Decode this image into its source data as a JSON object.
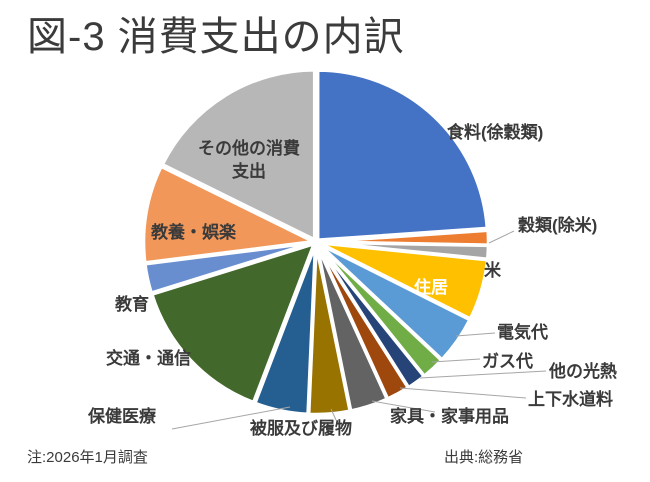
{
  "page": {
    "title": "図-3 消費支出の内訳",
    "note": "注:2026年1月調査",
    "source": "出典:総務省"
  },
  "chart_data": {
    "type": "pie",
    "title": "図-3 消費支出の内訳",
    "start_angle": "12-o-clock",
    "direction": "clockwise",
    "legend": "none (direct slice labels)",
    "slice_border_color": "#FFFFFF",
    "leader_line_color": "#A6A6A6",
    "background_color": "#FFFFFF",
    "slices": [
      {
        "label": "食料(徐穀類)",
        "share_percent": 23.9,
        "color": "#4472C4",
        "label_style": "outside"
      },
      {
        "label": "穀類(除米)",
        "share_percent": 1.4,
        "color": "#ED7D31",
        "label_style": "outside-leader"
      },
      {
        "label": "米",
        "share_percent": 1.3,
        "color": "#A5A5A5",
        "label_style": "outside"
      },
      {
        "label": "住居",
        "share_percent": 5.8,
        "color": "#FFC000",
        "label_style": "inside-white"
      },
      {
        "label": "電気代",
        "share_percent": 4.6,
        "color": "#5B9BD5",
        "label_style": "outside-leader"
      },
      {
        "label": "ガス代",
        "share_percent": 2.2,
        "color": "#70AD47",
        "label_style": "outside-leader"
      },
      {
        "label": "他の光熱",
        "share_percent": 1.8,
        "color": "#264478",
        "label_style": "outside-leader"
      },
      {
        "label": "上下水道料",
        "share_percent": 2.2,
        "color": "#9E480E",
        "label_style": "outside-leader"
      },
      {
        "label": "家具・家事用品",
        "share_percent": 3.6,
        "color": "#636363",
        "label_style": "outside-leader"
      },
      {
        "label": "被服及び履物",
        "share_percent": 3.9,
        "color": "#997300",
        "label_style": "outside-leader"
      },
      {
        "label": "保健医療",
        "share_percent": 5.1,
        "color": "#255E91",
        "label_style": "outside-leader"
      },
      {
        "label": "交通・通信",
        "share_percent": 14.4,
        "color": "#43682B",
        "label_style": "outside"
      },
      {
        "label": "教育",
        "share_percent": 2.8,
        "color": "#698ED0",
        "label_style": "outside"
      },
      {
        "label": "教養・娯楽",
        "share_percent": 9.3,
        "color": "#F1975A",
        "label_style": "inside-dark"
      },
      {
        "label": "その他の消費支出",
        "share_percent": 17.7,
        "color": "#B7B7B7",
        "label_style": "inside-dark"
      }
    ]
  }
}
